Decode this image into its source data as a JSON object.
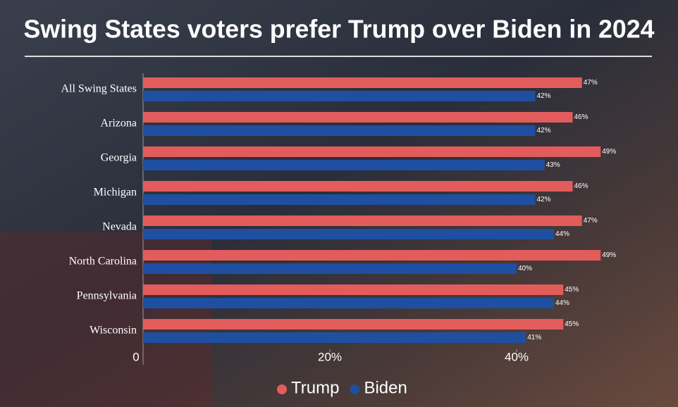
{
  "chart_data": {
    "type": "hbar",
    "title": "Swing States voters prefer Trump over Biden in 2024",
    "categories": [
      "All Swing States",
      "Arizona",
      "Georgia",
      "Michigan",
      "Nevada",
      "North Carolina",
      "Pennsylvania",
      "Wisconsin"
    ],
    "series": [
      {
        "name": "Trump",
        "color": "#e25c5c",
        "values": [
          47,
          46,
          49,
          46,
          47,
          49,
          45,
          45
        ],
        "value_labels": [
          "47%",
          "46%",
          "49%",
          "46%",
          "47%",
          "49%",
          "45%",
          "45%"
        ]
      },
      {
        "name": "Biden",
        "color": "#1f4fa0",
        "values": [
          42,
          42,
          43,
          42,
          44,
          40,
          44,
          41
        ],
        "value_labels": [
          "42%",
          "42%",
          "43%",
          "42%",
          "44%",
          "40%",
          "44%",
          "41%"
        ]
      }
    ],
    "xlim": [
      0,
      50
    ],
    "xticks": [
      0,
      {
        "value": 20,
        "label": "20%"
      },
      {
        "value": 40,
        "label": "40%"
      }
    ],
    "grid": false,
    "legend": "bottom"
  }
}
